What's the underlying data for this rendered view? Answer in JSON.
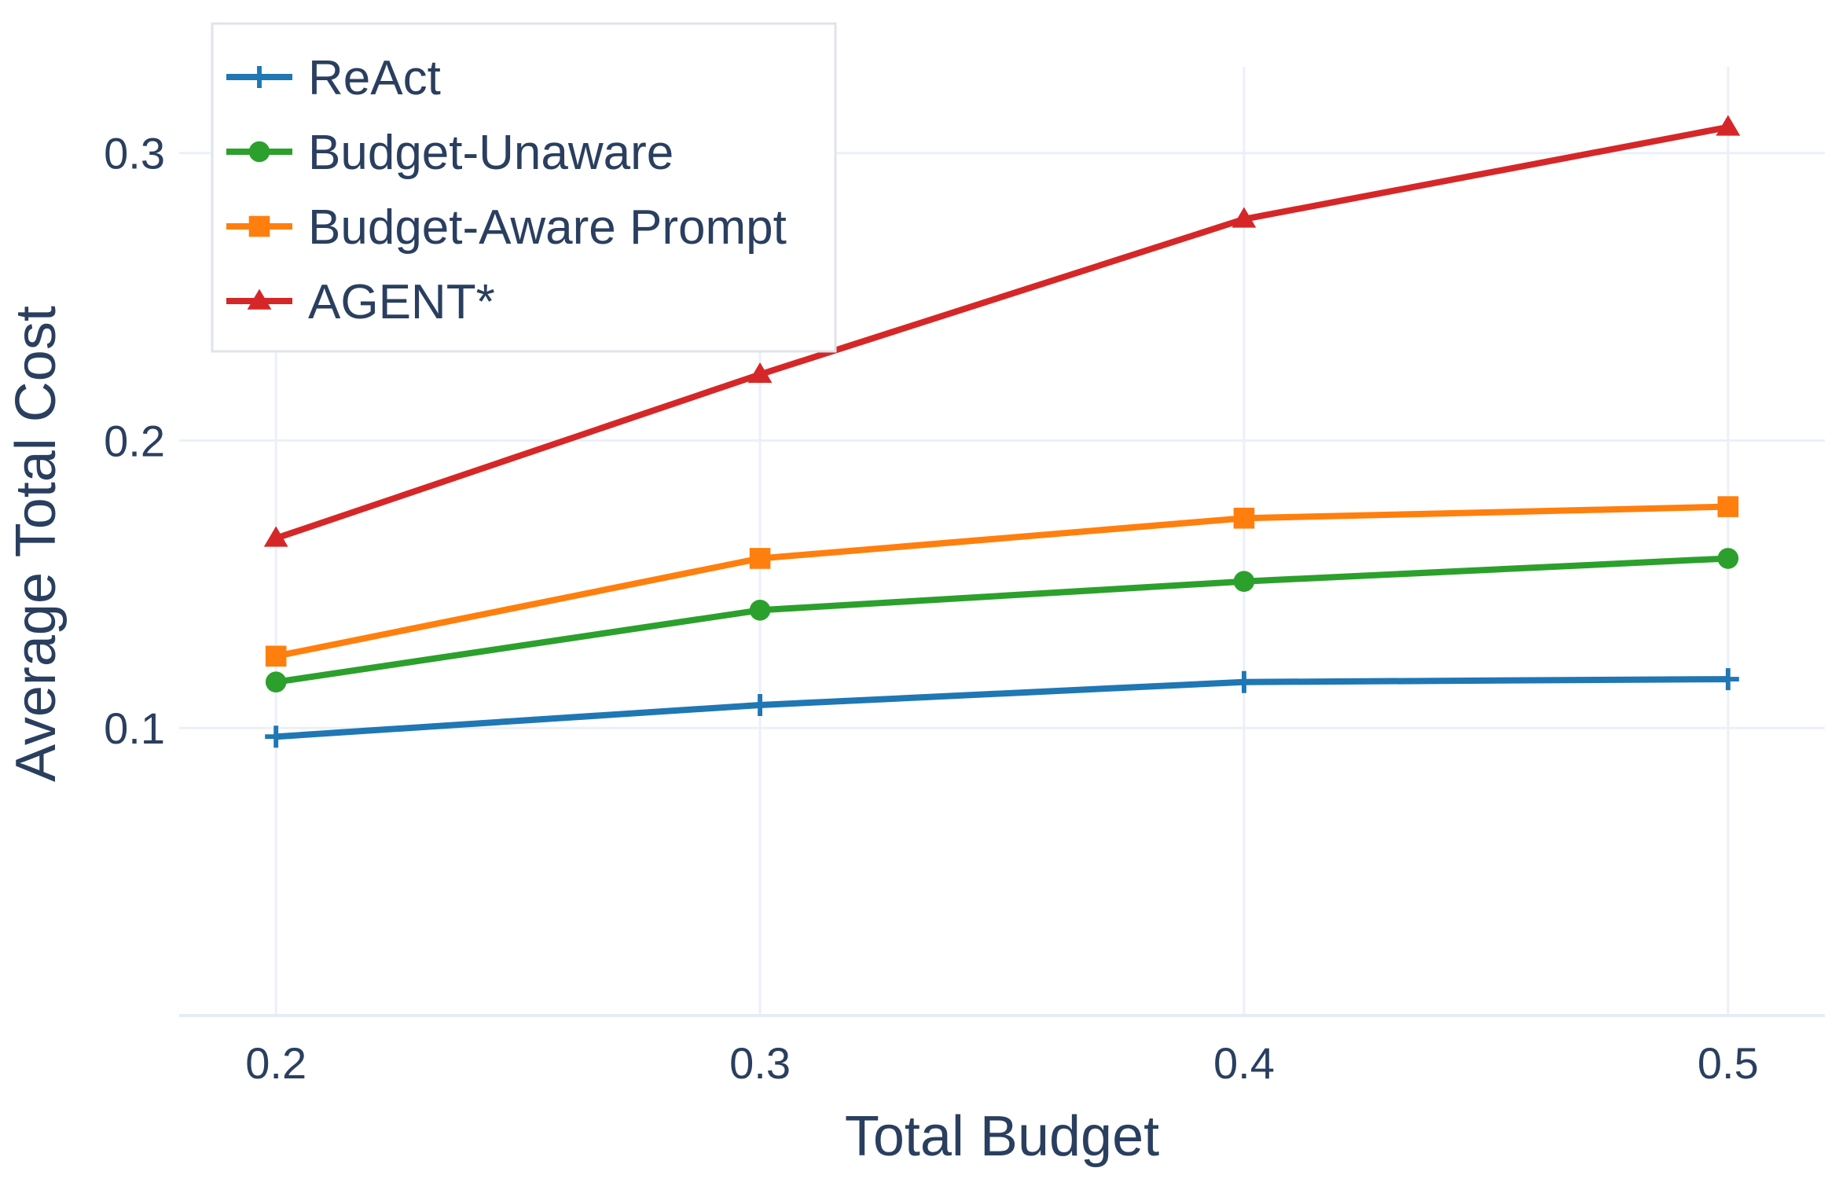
{
  "chart_data": {
    "type": "line",
    "xlabel": "Total Budget",
    "ylabel": "Average Total Cost",
    "xlim": [
      0.18,
      0.52
    ],
    "ylim": [
      0.0,
      0.33
    ],
    "xticks": [
      0.2,
      0.3,
      0.4,
      0.5
    ],
    "xtick_labels": [
      "0.2",
      "0.3",
      "0.4",
      "0.5"
    ],
    "yticks": [
      0.1,
      0.2,
      0.3
    ],
    "ytick_labels": [
      "0.1",
      "0.2",
      "0.3"
    ],
    "grid": true,
    "legend_position": "top-left",
    "x": [
      0.2,
      0.3,
      0.4,
      0.5
    ],
    "series": [
      {
        "name": "ReAct",
        "values": [
          0.097,
          0.108,
          0.116,
          0.117
        ],
        "color": "#1f77b4",
        "marker": "cross"
      },
      {
        "name": "Budget-Unaware",
        "values": [
          0.116,
          0.141,
          0.151,
          0.159
        ],
        "color": "#2ca02c",
        "marker": "circle"
      },
      {
        "name": "Budget-Aware Prompt",
        "values": [
          0.125,
          0.159,
          0.173,
          0.177
        ],
        "color": "#ff7f0e",
        "marker": "square"
      },
      {
        "name": "AGENT*",
        "values": [
          0.166,
          0.223,
          0.277,
          0.309
        ],
        "color": "#d62728",
        "marker": "triangle"
      }
    ]
  }
}
